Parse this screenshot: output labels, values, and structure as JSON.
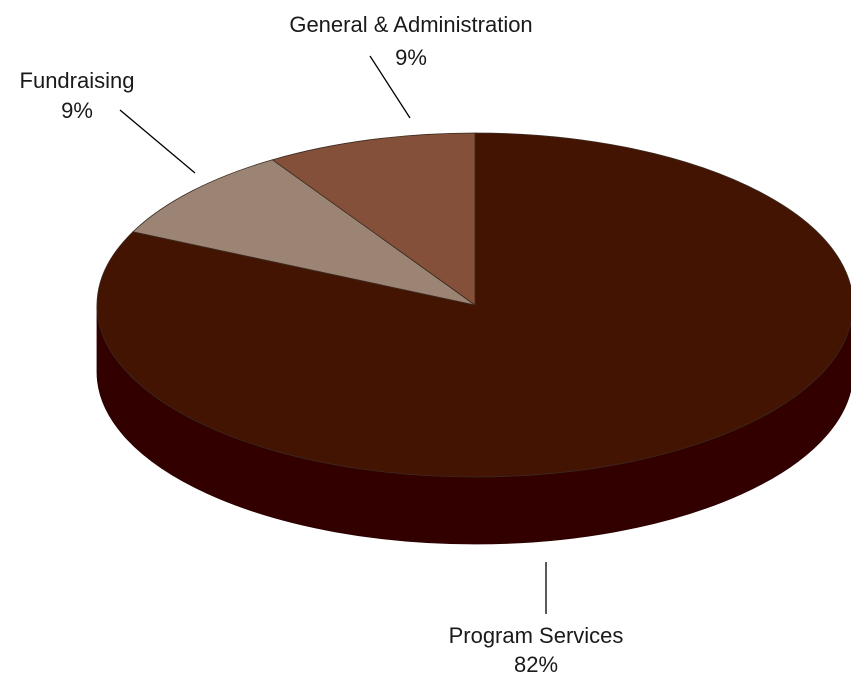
{
  "chart_data": {
    "type": "pie",
    "style": "3d",
    "legend": "none",
    "slices": [
      {
        "label": "Program Services",
        "value": 82,
        "display": "82%",
        "color": "#441403",
        "side_color": "#330000"
      },
      {
        "label": "Fundraising",
        "value": 9,
        "display": "9%",
        "color": "#9b8474",
        "side_color": "#7a6658"
      },
      {
        "label": "General & Administration",
        "value": 9,
        "display": "9%",
        "color": "#84503a",
        "side_color": "#5e3626"
      }
    ]
  }
}
